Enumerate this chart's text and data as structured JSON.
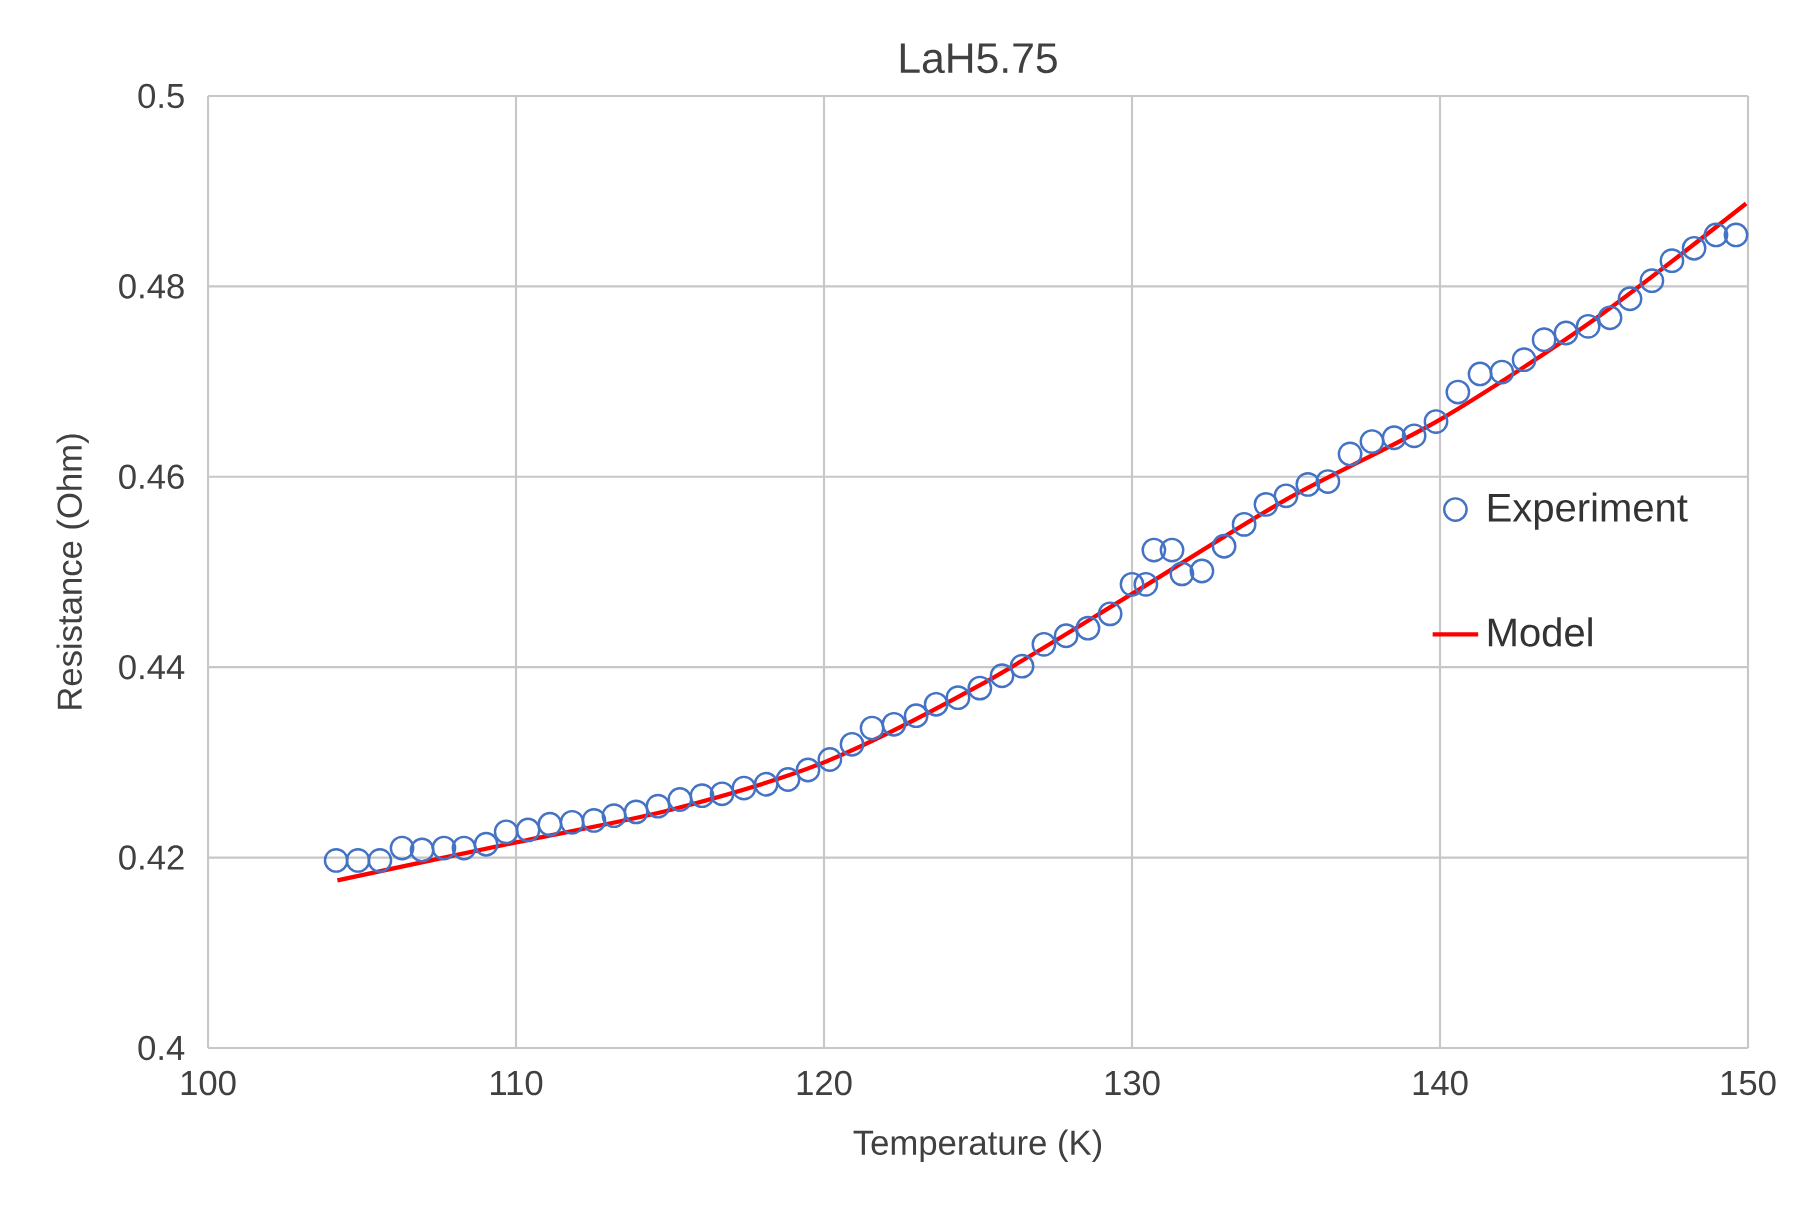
{
  "chart_data": {
    "type": "scatter",
    "title": "LaH5.75",
    "xlabel": "Temperature (K)",
    "ylabel": "Resistance (Ohm)",
    "xlim": [
      100,
      150
    ],
    "xticks": [
      100,
      110,
      120,
      130,
      140,
      150
    ],
    "ylim": [
      0.4,
      0.5
    ],
    "yticks": [
      0.4,
      0.42,
      0.44,
      0.46,
      0.48,
      0.5
    ],
    "grid": true,
    "legend": "right",
    "marker": "circle",
    "series": [
      {
        "name": "Experiment",
        "color": "#4472c4",
        "x": [
          104.16,
          104.87,
          105.58,
          106.3,
          106.95,
          107.66,
          108.31,
          109.03,
          109.68,
          110.39,
          111.1,
          111.82,
          112.53,
          113.18,
          113.9,
          114.61,
          115.32,
          116.04,
          116.69,
          117.4,
          118.12,
          118.83,
          119.48,
          120.19,
          120.91,
          121.56,
          122.27,
          122.99,
          123.64,
          124.35,
          125.06,
          125.78,
          126.43,
          127.14,
          127.86,
          128.57,
          129.29,
          130.0,
          130.45,
          130.71,
          131.3,
          131.62,
          132.27,
          132.99,
          133.64,
          134.35,
          135.0,
          135.71,
          136.36,
          137.08,
          137.79,
          138.51,
          139.16,
          139.87,
          140.58,
          141.3,
          142.01,
          142.73,
          143.38,
          144.09,
          144.81,
          145.52,
          146.17,
          146.88,
          147.53,
          148.25,
          148.96,
          149.61
        ],
        "values": [
          0.4197,
          0.4197,
          0.4197,
          0.421,
          0.4208,
          0.421,
          0.421,
          0.4214,
          0.4227,
          0.4229,
          0.4235,
          0.4237,
          0.4239,
          0.4244,
          0.4248,
          0.4254,
          0.4261,
          0.4265,
          0.4267,
          0.4273,
          0.4277,
          0.4282,
          0.4292,
          0.4303,
          0.4319,
          0.4336,
          0.434,
          0.4349,
          0.4361,
          0.4368,
          0.4378,
          0.4391,
          0.4401,
          0.4424,
          0.4433,
          0.4441,
          0.4456,
          0.4487,
          0.4487,
          0.4523,
          0.4523,
          0.4498,
          0.4501,
          0.4527,
          0.455,
          0.4571,
          0.458,
          0.4592,
          0.4595,
          0.4624,
          0.4637,
          0.4641,
          0.4643,
          0.4658,
          0.4689,
          0.4708,
          0.471,
          0.4723,
          0.4744,
          0.4751,
          0.4758,
          0.4767,
          0.4787,
          0.4806,
          0.4827,
          0.484,
          0.4854,
          0.4854
        ]
      },
      {
        "name": "Model",
        "type": "line",
        "color": "#ff0000",
        "marker": "none",
        "line_style": "solid",
        "x": [
          104.2,
          110,
          115,
          120,
          125,
          130,
          135,
          140,
          145,
          149.94
        ],
        "values": [
          0.4176,
          0.4216,
          0.425,
          0.43,
          0.438,
          0.4477,
          0.4576,
          0.466,
          0.4765,
          0.4887
        ]
      }
    ]
  }
}
